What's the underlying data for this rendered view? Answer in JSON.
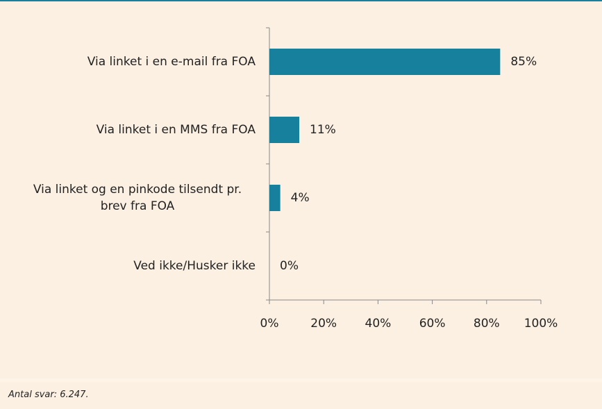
{
  "chart_data": {
    "type": "bar",
    "orientation": "horizontal",
    "categories": [
      "Via linket i en e-mail fra FOA",
      "Via linket i en MMS fra FOA",
      "Via linket og en pinkode tilsendt pr. brev fra FOA",
      "Ved ikke/Husker ikke"
    ],
    "values": [
      85,
      11,
      4,
      0
    ],
    "value_labels": [
      "85%",
      "11%",
      "4%",
      "0%"
    ],
    "color": "#17809c",
    "xlim": [
      0,
      100
    ],
    "xticks": [
      {
        "value": 0,
        "label": "0%"
      },
      {
        "value": 20,
        "label": "20%"
      },
      {
        "value": 40,
        "label": "40%"
      },
      {
        "value": 60,
        "label": "60%"
      },
      {
        "value": 80,
        "label": "80%"
      },
      {
        "value": 100,
        "label": "100%"
      }
    ],
    "grid": false,
    "note": "Antal svar: 6.247."
  }
}
